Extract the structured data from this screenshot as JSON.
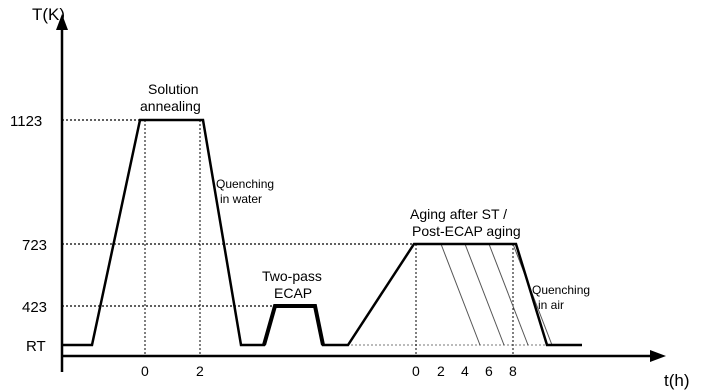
{
  "axes": {
    "y_label": "T(K)",
    "x_label": "t(h)",
    "y_ticks": [
      "1123",
      "723",
      "423",
      "RT"
    ],
    "x_ticks_solution": [
      "0",
      "2"
    ],
    "x_ticks_aging": [
      "0",
      "2",
      "4",
      "6",
      "8"
    ]
  },
  "annotations": {
    "solution_line1": "Solution",
    "solution_line2": "annealing",
    "quench_water_line1": "Quenching",
    "quench_water_line2": "in water",
    "ecap_line1": "Two-pass",
    "ecap_line2": "ECAP",
    "aging_line1": "Aging after ST /",
    "aging_line2": "Post-ECAP aging",
    "quench_air_line1": "Quenching",
    "quench_air_line2": "in air"
  },
  "process": {
    "steps": [
      {
        "name": "Solution annealing",
        "temperature_K": 1123,
        "duration_h": [
          0,
          2
        ]
      },
      {
        "name": "Quenching in water",
        "to": "RT"
      },
      {
        "name": "Two-pass ECAP",
        "temperature_K": 423
      },
      {
        "name": "Aging after ST / Post-ECAP aging",
        "temperature_K": 723,
        "duration_h": [
          0,
          2,
          4,
          6,
          8
        ]
      },
      {
        "name": "Quenching in air",
        "to": "RT"
      }
    ]
  }
}
